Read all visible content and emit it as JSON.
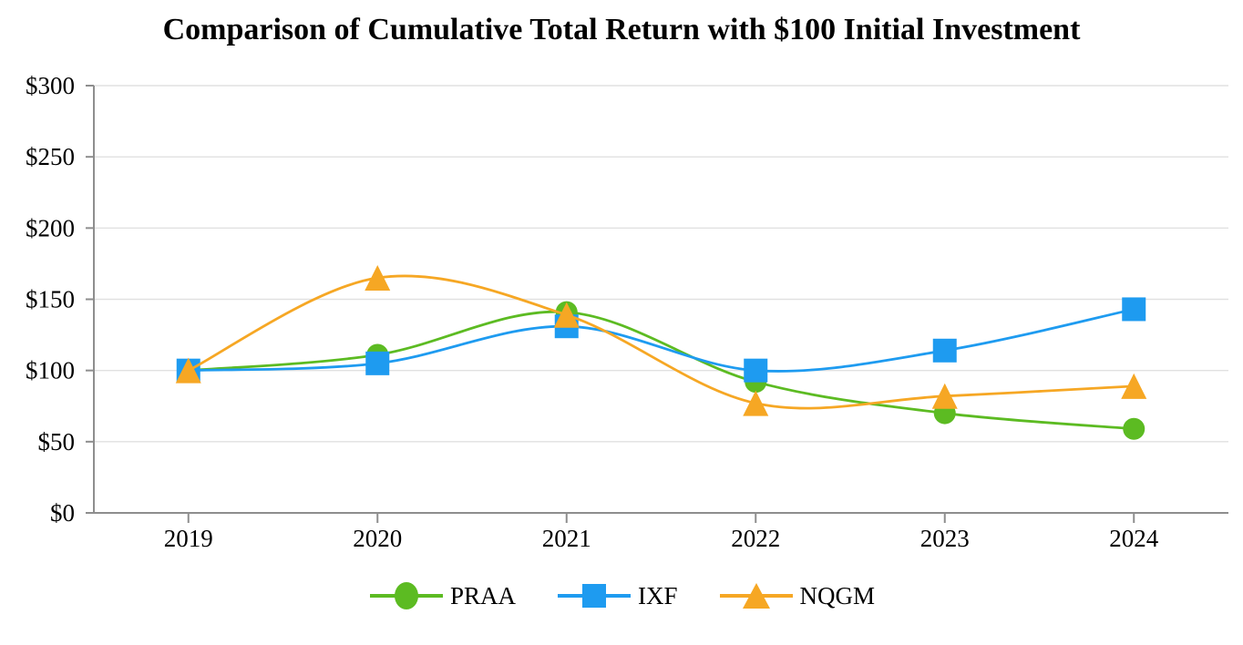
{
  "chart_data": {
    "type": "line",
    "title": "Comparison of Cumulative Total Return with $100 Initial Investment",
    "categories": [
      "2019",
      "2020",
      "2021",
      "2022",
      "2023",
      "2024"
    ],
    "series": [
      {
        "name": "PRAA",
        "marker": "circle",
        "color": "#5CBB22",
        "values": [
          100,
          111,
          141,
          92,
          70,
          59
        ]
      },
      {
        "name": "IXF",
        "marker": "square",
        "color": "#1E9BF0",
        "values": [
          100,
          105,
          131,
          100,
          114,
          143
        ]
      },
      {
        "name": "NQGM",
        "marker": "triangle",
        "color": "#F6A724",
        "values": [
          100,
          165,
          139,
          77,
          82,
          89
        ]
      }
    ],
    "xlabel": "",
    "ylabel": "",
    "ylim": [
      0,
      300
    ],
    "y_ticks": [
      0,
      50,
      100,
      150,
      200,
      250,
      300
    ],
    "y_tick_labels": [
      "$0",
      "$50",
      "$100",
      "$150",
      "$200",
      "$250",
      "$300"
    ],
    "grid": "horizontal-only",
    "line_style": "smooth-spline",
    "legend_position": "bottom-center",
    "colors": {
      "axis": "#8E8E8E",
      "gridline": "#E1E1E1",
      "text": "#000000",
      "background": "#FFFFFF"
    }
  }
}
